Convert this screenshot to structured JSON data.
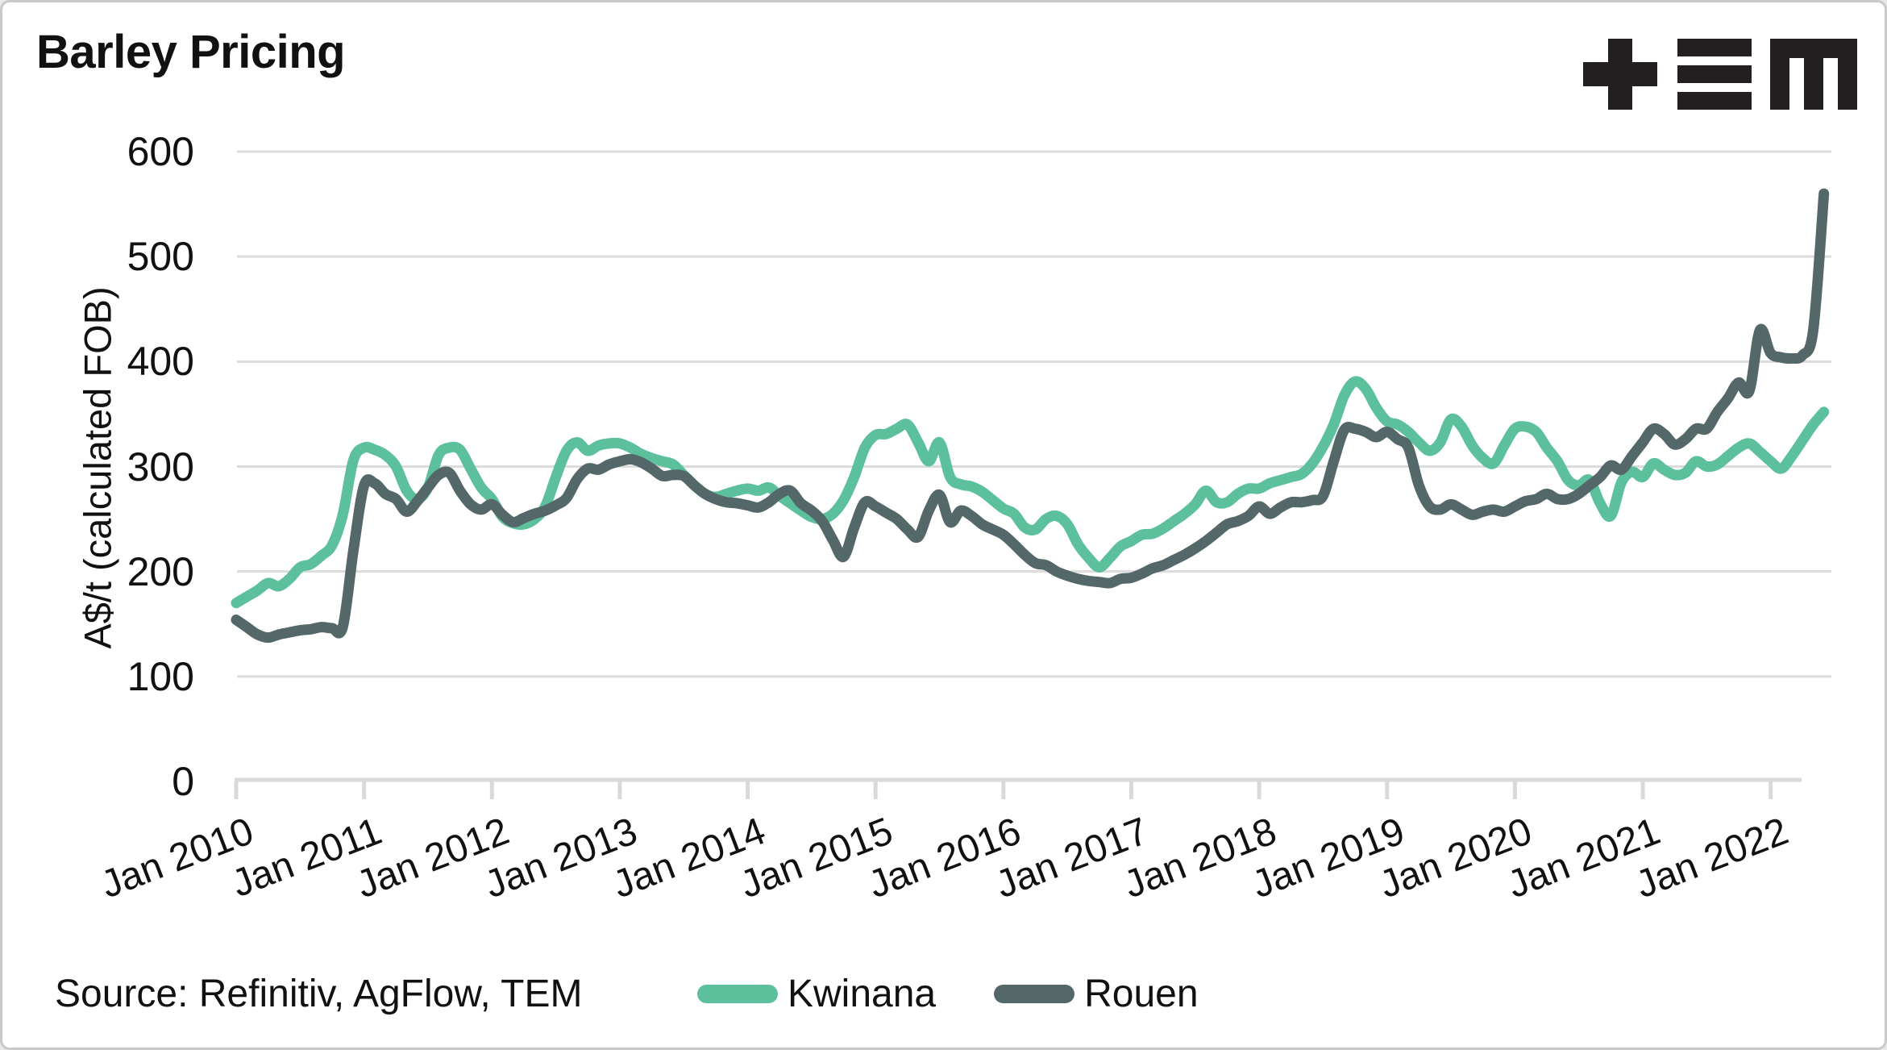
{
  "title": "Barley Pricing",
  "logo": "tem-logo",
  "source": "Source: Refinitiv, AgFlow, TEM",
  "legend": {
    "kwinana_label": "Kwinana",
    "rouen_label": "Rouen"
  },
  "colors": {
    "kwinana": "#5CC09D",
    "rouen": "#54686A",
    "gridline": "#dcdcdc",
    "axis": "#d9d9d9",
    "text": "#111111",
    "logo": "#231f20"
  },
  "chart_data": {
    "type": "line",
    "title": "Barley Pricing",
    "xlabel": "",
    "ylabel": "A$/t (calculated FOB)",
    "ylim": [
      0,
      600
    ],
    "yticks": [
      0,
      100,
      200,
      300,
      400,
      500,
      600
    ],
    "xticks": [
      "Jan 2010",
      "Jan 2011",
      "Jan 2012",
      "Jan 2013",
      "Jan 2014",
      "Jan 2015",
      "Jan 2016",
      "Jan 2017",
      "Jan 2018",
      "Jan 2019",
      "Jan 2020",
      "Jan 2021",
      "Jan 2022"
    ],
    "x_unit": "month",
    "x_start": "2010-01",
    "x_end": "2022-06",
    "grid": "horizontal",
    "legend_position": "bottom",
    "series": [
      {
        "name": "Kwinana",
        "color": "#5CC09D",
        "values": [
          170,
          176,
          182,
          189,
          186,
          193,
          204,
          207,
          215,
          225,
          254,
          306,
          318,
          316,
          311,
          300,
          277,
          269,
          280,
          311,
          318,
          316,
          298,
          280,
          269,
          252,
          246,
          245,
          250,
          262,
          290,
          315,
          323,
          315,
          320,
          322,
          322,
          318,
          312,
          308,
          305,
          302,
          292,
          282,
          274,
          271,
          274,
          277,
          279,
          277,
          280,
          272,
          265,
          258,
          252,
          250,
          255,
          268,
          290,
          318,
          330,
          331,
          336,
          340,
          323,
          305,
          323,
          290,
          283,
          281,
          276,
          268,
          260,
          255,
          242,
          240,
          250,
          253,
          245,
          226,
          213,
          204,
          213,
          224,
          229,
          235,
          236,
          241,
          248,
          255,
          264,
          277,
          266,
          266,
          274,
          279,
          279,
          284,
          287,
          290,
          293,
          303,
          319,
          340,
          368,
          381,
          374,
          356,
          343,
          340,
          333,
          323,
          315,
          323,
          345,
          338,
          320,
          308,
          303,
          320,
          336,
          338,
          333,
          318,
          305,
          287,
          282,
          287,
          265,
          253,
          285,
          295,
          290,
          303,
          297,
          292,
          294,
          305,
          300,
          302,
          310,
          318,
          322,
          314,
          305,
          298,
          310,
          325,
          340,
          352
        ]
      },
      {
        "name": "Rouen",
        "color": "#54686A",
        "values": [
          154,
          147,
          140,
          137,
          140,
          142,
          144,
          145,
          147,
          146,
          147,
          220,
          282,
          284,
          274,
          269,
          257,
          267,
          280,
          292,
          294,
          277,
          264,
          259,
          264,
          254,
          247,
          251,
          255,
          258,
          263,
          270,
          288,
          298,
          297,
          302,
          305,
          307,
          304,
          298,
          291,
          292,
          291,
          282,
          274,
          269,
          266,
          265,
          263,
          261,
          266,
          274,
          277,
          265,
          258,
          248,
          230,
          214,
          242,
          266,
          262,
          256,
          250,
          240,
          233,
          258,
          273,
          247,
          258,
          253,
          245,
          240,
          235,
          226,
          216,
          208,
          206,
          200,
          196,
          193,
          191,
          190,
          189,
          193,
          194,
          198,
          203,
          206,
          211,
          216,
          222,
          229,
          237,
          245,
          248,
          253,
          262,
          255,
          261,
          266,
          266,
          268,
          272,
          305,
          335,
          336,
          333,
          328,
          333,
          326,
          318,
          282,
          262,
          259,
          264,
          259,
          254,
          257,
          259,
          257,
          262,
          267,
          269,
          274,
          269,
          269,
          274,
          282,
          290,
          301,
          297,
          310,
          323,
          336,
          331,
          321,
          326,
          336,
          336,
          352,
          365,
          380,
          372,
          430,
          408,
          404,
          403,
          406,
          430,
          560
        ]
      }
    ]
  }
}
